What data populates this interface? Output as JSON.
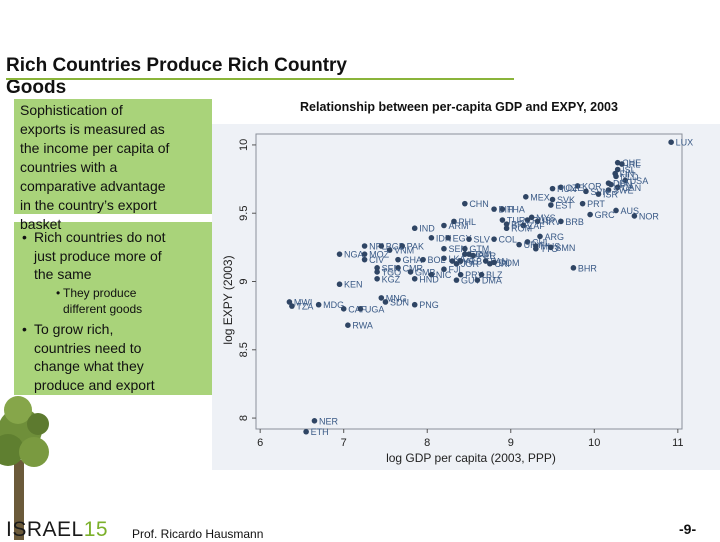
{
  "slide": {
    "title_line1": "Rich Countries Produce Rich Country",
    "title_line2": "Goods",
    "text_block": [
      "Sophistication of",
      "exports is measured as",
      "the income per capita of",
      "countries with a",
      "comparative advantage",
      "in the country’s export",
      "basket"
    ],
    "bullet_1": [
      "Rich countries do not",
      "just produce more of",
      "the same"
    ],
    "sub_bullet": [
      "They produce",
      "different goods"
    ],
    "bullet_2": [
      "To grow rich,",
      "countries need to",
      "change what they",
      "produce and export"
    ],
    "bullet_glyph": "•",
    "footer_brand_text": "ISRAEL",
    "footer_brand_number": "15",
    "footer_author": "Prof. Ricardo Hausmann",
    "page_number": "-9-"
  },
  "colors": {
    "accent_green": "#a9d37a",
    "title_rule": "#8ab43a",
    "marker": "#2f4564",
    "plot_background": "#eef1f6"
  },
  "chart_data": {
    "type": "scatter",
    "title": "Relationship between per-capita GDP and EXPY, 2003",
    "xlabel": "log GDP per capita (2003, PPP)",
    "ylabel": "log EXPY (2003)",
    "xlim": [
      5.95,
      11.05
    ],
    "ylim": [
      7.92,
      10.08
    ],
    "xticks": [
      "6",
      "7",
      "8",
      "9",
      "10",
      "11"
    ],
    "yticks": [
      "8",
      "8.5",
      "9",
      "9.5",
      "10"
    ],
    "grid": false,
    "points": [
      {
        "label": "LUX",
        "x": 10.92,
        "y": 10.02
      },
      {
        "label": "CHE",
        "x": 10.28,
        "y": 9.87
      },
      {
        "label": "IRL",
        "x": 10.33,
        "y": 9.86
      },
      {
        "label": "ISL",
        "x": 10.28,
        "y": 9.82
      },
      {
        "label": "FIN",
        "x": 10.25,
        "y": 9.79
      },
      {
        "label": "NLD",
        "x": 10.26,
        "y": 9.77
      },
      {
        "label": "USA",
        "x": 10.37,
        "y": 9.74
      },
      {
        "label": "DEU",
        "x": 10.17,
        "y": 9.72
      },
      {
        "label": "JPN",
        "x": 10.2,
        "y": 9.71
      },
      {
        "label": "KOR",
        "x": 9.8,
        "y": 9.7
      },
      {
        "label": "CAN",
        "x": 10.28,
        "y": 9.69
      },
      {
        "label": "SWE",
        "x": 10.17,
        "y": 9.67
      },
      {
        "label": "CZE",
        "x": 9.6,
        "y": 9.69
      },
      {
        "label": "HUN",
        "x": 9.5,
        "y": 9.68
      },
      {
        "label": "SVN",
        "x": 9.9,
        "y": 9.66
      },
      {
        "label": "ISR",
        "x": 10.05,
        "y": 9.64
      },
      {
        "label": "MEX",
        "x": 9.18,
        "y": 9.62
      },
      {
        "label": "SVK",
        "x": 9.5,
        "y": 9.6
      },
      {
        "label": "PRT",
        "x": 9.86,
        "y": 9.57
      },
      {
        "label": "EST",
        "x": 9.48,
        "y": 9.56
      },
      {
        "label": "AUS",
        "x": 10.26,
        "y": 9.52
      },
      {
        "label": "GRC",
        "x": 9.95,
        "y": 9.49
      },
      {
        "label": "NOR",
        "x": 10.48,
        "y": 9.48
      },
      {
        "label": "CHN",
        "x": 8.45,
        "y": 9.57
      },
      {
        "label": "BIH",
        "x": 8.8,
        "y": 9.53
      },
      {
        "label": "THA",
        "x": 8.9,
        "y": 9.53
      },
      {
        "label": "TUR",
        "x": 8.9,
        "y": 9.45
      },
      {
        "label": "RUS",
        "x": 9.2,
        "y": 9.45
      },
      {
        "label": "MYS",
        "x": 9.25,
        "y": 9.47
      },
      {
        "label": "HRV",
        "x": 9.32,
        "y": 9.44
      },
      {
        "label": "BRB",
        "x": 9.6,
        "y": 9.44
      },
      {
        "label": "PHL",
        "x": 8.32,
        "y": 9.44
      },
      {
        "label": "BRA",
        "x": 8.95,
        "y": 9.42
      },
      {
        "label": "ZAF",
        "x": 9.15,
        "y": 9.41
      },
      {
        "label": "IND",
        "x": 7.85,
        "y": 9.39
      },
      {
        "label": "ARM",
        "x": 8.2,
        "y": 9.41
      },
      {
        "label": "ROM",
        "x": 8.95,
        "y": 9.39
      },
      {
        "label": "IDN",
        "x": 8.05,
        "y": 9.32
      },
      {
        "label": "EGY",
        "x": 8.25,
        "y": 9.32
      },
      {
        "label": "ARG",
        "x": 9.35,
        "y": 9.33
      },
      {
        "label": "COL",
        "x": 8.8,
        "y": 9.31
      },
      {
        "label": "SLV",
        "x": 8.5,
        "y": 9.31
      },
      {
        "label": "CHL",
        "x": 9.2,
        "y": 9.29
      },
      {
        "label": "URY",
        "x": 9.1,
        "y": 9.27
      },
      {
        "label": "MUS",
        "x": 9.3,
        "y": 9.26
      },
      {
        "label": "TTO",
        "x": 9.3,
        "y": 9.24
      },
      {
        "label": "SMN",
        "x": 9.48,
        "y": 9.25
      },
      {
        "label": "NPL",
        "x": 7.25,
        "y": 9.26
      },
      {
        "label": "BGD",
        "x": 7.45,
        "y": 9.26
      },
      {
        "label": "PAK",
        "x": 7.7,
        "y": 9.26
      },
      {
        "label": "VNM",
        "x": 7.55,
        "y": 9.23
      },
      {
        "label": "SEN",
        "x": 8.2,
        "y": 9.24
      },
      {
        "label": "GTM",
        "x": 8.45,
        "y": 9.24
      },
      {
        "label": "NGA",
        "x": 6.95,
        "y": 9.2
      },
      {
        "label": "MOZ",
        "x": 7.25,
        "y": 9.2
      },
      {
        "label": "ECU",
        "x": 8.45,
        "y": 9.2
      },
      {
        "label": "JAM",
        "x": 8.5,
        "y": 9.2
      },
      {
        "label": "PER",
        "x": 8.55,
        "y": 9.19
      },
      {
        "label": "LKA",
        "x": 8.2,
        "y": 9.17
      },
      {
        "label": "CIV",
        "x": 7.25,
        "y": 9.16
      },
      {
        "label": "GHA",
        "x": 7.65,
        "y": 9.16
      },
      {
        "label": "BOL",
        "x": 7.95,
        "y": 9.16
      },
      {
        "label": "SYR",
        "x": 8.3,
        "y": 9.15
      },
      {
        "label": "ALB",
        "x": 8.4,
        "y": 9.15
      },
      {
        "label": "PAN",
        "x": 8.7,
        "y": 9.15
      },
      {
        "label": "JOR",
        "x": 8.35,
        "y": 9.13
      },
      {
        "label": "CRI",
        "x": 8.75,
        "y": 9.13
      },
      {
        "label": "DOM",
        "x": 8.8,
        "y": 9.14
      },
      {
        "label": "BHR",
        "x": 9.75,
        "y": 9.1
      },
      {
        "label": "SEN",
        "x": 7.4,
        "y": 9.1
      },
      {
        "label": "CMR",
        "x": 7.65,
        "y": 9.1
      },
      {
        "label": "TGO",
        "x": 7.4,
        "y": 9.07
      },
      {
        "label": "FJI",
        "x": 8.2,
        "y": 9.09
      },
      {
        "label": "GMB",
        "x": 7.8,
        "y": 9.07
      },
      {
        "label": "NIC",
        "x": 8.05,
        "y": 9.05
      },
      {
        "label": "PRY",
        "x": 8.4,
        "y": 9.05
      },
      {
        "label": "BLZ",
        "x": 8.65,
        "y": 9.05
      },
      {
        "label": "KGZ",
        "x": 7.4,
        "y": 9.02
      },
      {
        "label": "HND",
        "x": 7.85,
        "y": 9.02
      },
      {
        "label": "GUY",
        "x": 8.35,
        "y": 9.01
      },
      {
        "label": "DMA",
        "x": 8.6,
        "y": 9.01
      },
      {
        "label": "KEN",
        "x": 6.95,
        "y": 8.98
      },
      {
        "label": "MNG",
        "x": 7.45,
        "y": 8.88
      },
      {
        "label": "SDN",
        "x": 7.5,
        "y": 8.85
      },
      {
        "label": "PNG",
        "x": 7.85,
        "y": 8.83
      },
      {
        "label": "MWI",
        "x": 6.35,
        "y": 8.85
      },
      {
        "label": "TZA",
        "x": 6.38,
        "y": 8.82
      },
      {
        "label": "MDG",
        "x": 6.7,
        "y": 8.83
      },
      {
        "label": "CAF",
        "x": 7.0,
        "y": 8.8
      },
      {
        "label": "UGA",
        "x": 7.2,
        "y": 8.8
      },
      {
        "label": "RWA",
        "x": 7.05,
        "y": 8.68
      },
      {
        "label": "NER",
        "x": 6.65,
        "y": 7.98
      },
      {
        "label": "ETH",
        "x": 6.55,
        "y": 7.9
      }
    ]
  }
}
